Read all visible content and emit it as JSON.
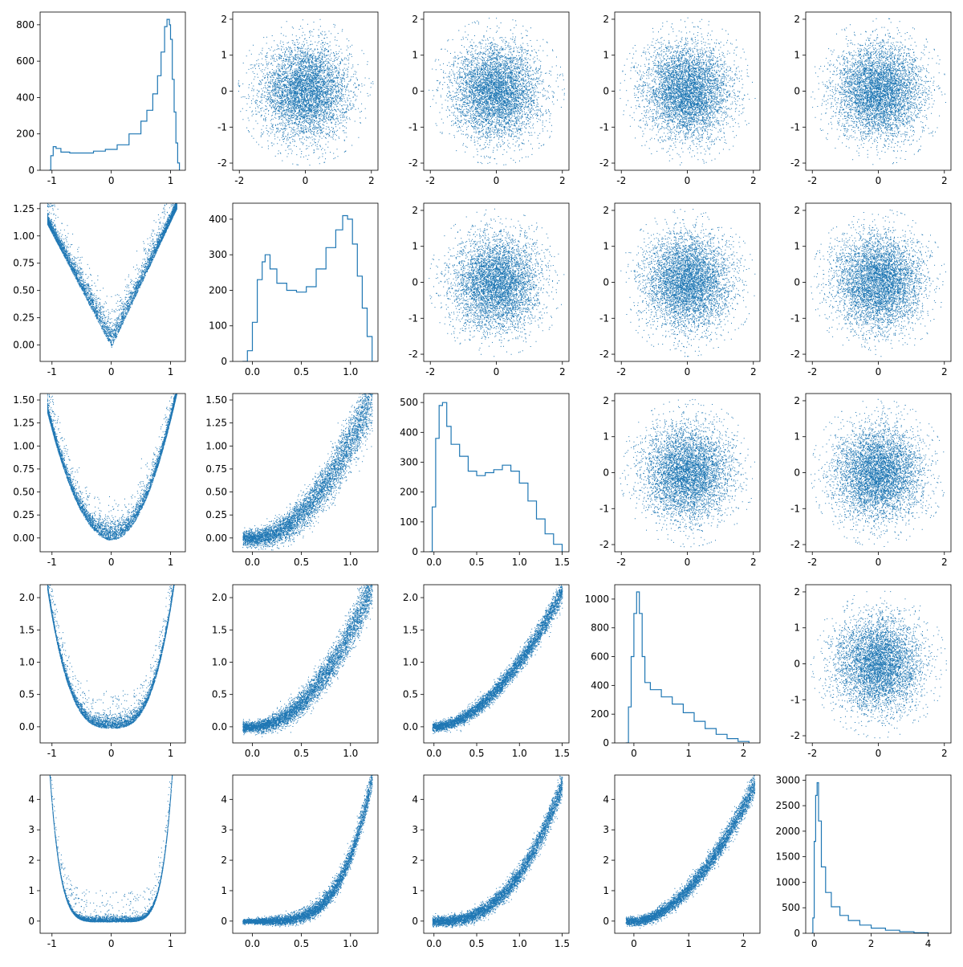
{
  "chart_data": {
    "type": "pair-grid",
    "description_of_layout": "5x5 corner plot: diagonal panels are step histograms, off-diagonal panels are scatter plots",
    "color": "#1f77b4",
    "panels": [
      {
        "row": 0,
        "col": 0,
        "type": "histogram",
        "xticks": [
          "-1",
          "0",
          "1"
        ],
        "yticks": [
          "0",
          "200",
          "400",
          "600",
          "800"
        ],
        "xlim": [
          -1.2,
          1.25
        ],
        "ylim": [
          0,
          870
        ],
        "bins": [
          [
            -1.05,
            0
          ],
          [
            -1.02,
            80
          ],
          [
            -0.98,
            130
          ],
          [
            -0.93,
            120
          ],
          [
            -0.85,
            100
          ],
          [
            -0.7,
            95
          ],
          [
            -0.5,
            95
          ],
          [
            -0.3,
            105
          ],
          [
            -0.1,
            115
          ],
          [
            0.1,
            140
          ],
          [
            0.3,
            200
          ],
          [
            0.5,
            270
          ],
          [
            0.6,
            330
          ],
          [
            0.7,
            420
          ],
          [
            0.78,
            520
          ],
          [
            0.84,
            650
          ],
          [
            0.9,
            790
          ],
          [
            0.94,
            830
          ],
          [
            0.98,
            800
          ],
          [
            1.0,
            720
          ],
          [
            1.03,
            500
          ],
          [
            1.06,
            320
          ],
          [
            1.09,
            150
          ],
          [
            1.12,
            40
          ],
          [
            1.15,
            0
          ]
        ]
      },
      {
        "row": 0,
        "col": 1,
        "type": "scatter",
        "dist": "normal",
        "xticks": [
          "-2",
          "0",
          "2"
        ],
        "yticks": [
          "-2",
          "-1",
          "0",
          "1",
          "2"
        ],
        "xlim": [
          -2.2,
          2.2
        ],
        "ylim": [
          -2.2,
          2.2
        ]
      },
      {
        "row": 0,
        "col": 2,
        "type": "scatter",
        "dist": "normal",
        "xticks": [
          "-2",
          "0",
          "2"
        ],
        "yticks": [
          "-2",
          "-1",
          "0",
          "1",
          "2"
        ],
        "xlim": [
          -2.2,
          2.2
        ],
        "ylim": [
          -2.2,
          2.2
        ]
      },
      {
        "row": 0,
        "col": 3,
        "type": "scatter",
        "dist": "normal",
        "xticks": [
          "-2",
          "0",
          "2"
        ],
        "yticks": [
          "-2",
          "-1",
          "0",
          "1",
          "2"
        ],
        "xlim": [
          -2.2,
          2.2
        ],
        "ylim": [
          -2.2,
          2.2
        ]
      },
      {
        "row": 0,
        "col": 4,
        "type": "scatter",
        "dist": "normal",
        "xticks": [
          "-2",
          "0",
          "2"
        ],
        "yticks": [
          "-2",
          "-1",
          "0",
          "1",
          "2"
        ],
        "xlim": [
          -2.2,
          2.2
        ],
        "ylim": [
          -2.2,
          2.2
        ]
      },
      {
        "row": 1,
        "col": 0,
        "type": "scatter",
        "dist": "curve",
        "power": 1,
        "xticks": [
          "-1",
          "0",
          "1"
        ],
        "yticks": [
          "0.00",
          "0.25",
          "0.50",
          "0.75",
          "1.00",
          "1.25"
        ],
        "xlim": [
          -1.2,
          1.25
        ],
        "ylim": [
          -0.15,
          1.3
        ]
      },
      {
        "row": 1,
        "col": 1,
        "type": "histogram",
        "xticks": [
          "0.0",
          "0.5",
          "1.0"
        ],
        "yticks": [
          "0",
          "100",
          "200",
          "300",
          "400"
        ],
        "xlim": [
          -0.2,
          1.28
        ],
        "ylim": [
          0,
          445
        ],
        "bins": [
          [
            -0.1,
            0
          ],
          [
            -0.05,
            30
          ],
          [
            0.0,
            110
          ],
          [
            0.05,
            230
          ],
          [
            0.1,
            280
          ],
          [
            0.13,
            300
          ],
          [
            0.18,
            260
          ],
          [
            0.25,
            220
          ],
          [
            0.35,
            200
          ],
          [
            0.45,
            195
          ],
          [
            0.55,
            210
          ],
          [
            0.65,
            260
          ],
          [
            0.75,
            320
          ],
          [
            0.85,
            370
          ],
          [
            0.92,
            410
          ],
          [
            0.97,
            400
          ],
          [
            1.02,
            330
          ],
          [
            1.07,
            240
          ],
          [
            1.12,
            150
          ],
          [
            1.17,
            70
          ],
          [
            1.22,
            0
          ]
        ]
      },
      {
        "row": 1,
        "col": 2,
        "type": "scatter",
        "dist": "normal",
        "xticks": [
          "-2",
          "0",
          "2"
        ],
        "yticks": [
          "-2",
          "-1",
          "0",
          "1",
          "2"
        ],
        "xlim": [
          -2.2,
          2.2
        ],
        "ylim": [
          -2.2,
          2.2
        ]
      },
      {
        "row": 1,
        "col": 3,
        "type": "scatter",
        "dist": "normal",
        "xticks": [
          "-2",
          "0",
          "2"
        ],
        "yticks": [
          "-2",
          "-1",
          "0",
          "1",
          "2"
        ],
        "xlim": [
          -2.2,
          2.2
        ],
        "ylim": [
          -2.2,
          2.2
        ]
      },
      {
        "row": 1,
        "col": 4,
        "type": "scatter",
        "dist": "normal",
        "xticks": [
          "-2",
          "0",
          "2"
        ],
        "yticks": [
          "-2",
          "-1",
          "0",
          "1",
          "2"
        ],
        "xlim": [
          -2.2,
          2.2
        ],
        "ylim": [
          -2.2,
          2.2
        ]
      },
      {
        "row": 2,
        "col": 0,
        "type": "scatter",
        "dist": "curve",
        "power": 2,
        "xticks": [
          "-1",
          "0",
          "1"
        ],
        "yticks": [
          "0.00",
          "0.25",
          "0.50",
          "0.75",
          "1.00",
          "1.25",
          "1.50"
        ],
        "xlim": [
          -1.2,
          1.25
        ],
        "ylim": [
          -0.15,
          1.57
        ]
      },
      {
        "row": 2,
        "col": 1,
        "type": "scatter",
        "dist": "rise",
        "ymax": 1.5,
        "xticks": [
          "0.0",
          "0.5",
          "1.0"
        ],
        "yticks": [
          "0.00",
          "0.25",
          "0.50",
          "0.75",
          "1.00",
          "1.25",
          "1.50"
        ],
        "xlim": [
          -0.2,
          1.28
        ],
        "ylim": [
          -0.15,
          1.57
        ]
      },
      {
        "row": 2,
        "col": 2,
        "type": "histogram",
        "xticks": [
          "0.0",
          "0.5",
          "1.0",
          "1.5"
        ],
        "yticks": [
          "0",
          "100",
          "200",
          "300",
          "400",
          "500"
        ],
        "xlim": [
          -0.12,
          1.58
        ],
        "ylim": [
          0,
          530
        ],
        "bins": [
          [
            -0.05,
            0
          ],
          [
            -0.02,
            150
          ],
          [
            0.02,
            380
          ],
          [
            0.06,
            490
          ],
          [
            0.1,
            500
          ],
          [
            0.15,
            420
          ],
          [
            0.2,
            360
          ],
          [
            0.3,
            320
          ],
          [
            0.4,
            270
          ],
          [
            0.5,
            255
          ],
          [
            0.6,
            265
          ],
          [
            0.7,
            275
          ],
          [
            0.8,
            290
          ],
          [
            0.9,
            270
          ],
          [
            1.0,
            230
          ],
          [
            1.1,
            170
          ],
          [
            1.2,
            110
          ],
          [
            1.3,
            60
          ],
          [
            1.4,
            25
          ],
          [
            1.5,
            0
          ]
        ]
      },
      {
        "row": 2,
        "col": 3,
        "type": "scatter",
        "dist": "normal",
        "xticks": [
          "-2",
          "0",
          "2"
        ],
        "yticks": [
          "-2",
          "-1",
          "0",
          "1",
          "2"
        ],
        "xlim": [
          -2.2,
          2.2
        ],
        "ylim": [
          -2.2,
          2.2
        ]
      },
      {
        "row": 2,
        "col": 4,
        "type": "scatter",
        "dist": "normal",
        "xticks": [
          "-2",
          "0",
          "2"
        ],
        "yticks": [
          "-2",
          "-1",
          "0",
          "1",
          "2"
        ],
        "xlim": [
          -2.2,
          2.2
        ],
        "ylim": [
          -2.2,
          2.2
        ]
      },
      {
        "row": 3,
        "col": 0,
        "type": "scatter",
        "dist": "curve",
        "power": 3,
        "xticks": [
          "-1",
          "0",
          "1"
        ],
        "yticks": [
          "0.0",
          "0.5",
          "1.0",
          "1.5",
          "2.0"
        ],
        "xlim": [
          -1.2,
          1.25
        ],
        "ylim": [
          -0.25,
          2.2
        ]
      },
      {
        "row": 3,
        "col": 1,
        "type": "scatter",
        "dist": "rise",
        "ymax": 2.1,
        "xticks": [
          "0.0",
          "0.5",
          "1.0"
        ],
        "yticks": [
          "0.0",
          "0.5",
          "1.0",
          "1.5",
          "2.0"
        ],
        "xlim": [
          -0.2,
          1.28
        ],
        "ylim": [
          -0.25,
          2.2
        ]
      },
      {
        "row": 3,
        "col": 2,
        "type": "scatter",
        "dist": "band",
        "xmax": 1.5,
        "ymax": 2.1,
        "xticks": [
          "0.0",
          "0.5",
          "1.0",
          "1.5"
        ],
        "yticks": [
          "0.0",
          "0.5",
          "1.0",
          "1.5",
          "2.0"
        ],
        "xlim": [
          -0.12,
          1.58
        ],
        "ylim": [
          -0.25,
          2.2
        ]
      },
      {
        "row": 3,
        "col": 3,
        "type": "histogram",
        "xticks": [
          "0",
          "1",
          "2"
        ],
        "yticks": [
          "0",
          "200",
          "400",
          "600",
          "800",
          "1000"
        ],
        "xlim": [
          -0.35,
          2.3
        ],
        "ylim": [
          0,
          1100
        ],
        "bins": [
          [
            -0.15,
            0
          ],
          [
            -0.1,
            250
          ],
          [
            -0.05,
            600
          ],
          [
            0.0,
            900
          ],
          [
            0.05,
            1050
          ],
          [
            0.1,
            900
          ],
          [
            0.15,
            600
          ],
          [
            0.2,
            420
          ],
          [
            0.3,
            370
          ],
          [
            0.5,
            320
          ],
          [
            0.7,
            270
          ],
          [
            0.9,
            210
          ],
          [
            1.1,
            150
          ],
          [
            1.3,
            100
          ],
          [
            1.5,
            60
          ],
          [
            1.7,
            30
          ],
          [
            1.9,
            10
          ],
          [
            2.1,
            0
          ]
        ]
      },
      {
        "row": 3,
        "col": 4,
        "type": "scatter",
        "dist": "normal",
        "xticks": [
          "-2",
          "0",
          "2"
        ],
        "yticks": [
          "-2",
          "-1",
          "0",
          "1",
          "2"
        ],
        "xlim": [
          -2.2,
          2.2
        ],
        "ylim": [
          -2.2,
          2.2
        ]
      },
      {
        "row": 4,
        "col": 0,
        "type": "scatter",
        "dist": "curve",
        "power": 6,
        "xticks": [
          "-1",
          "0",
          "1"
        ],
        "yticks": [
          "0",
          "1",
          "2",
          "3",
          "4"
        ],
        "xlim": [
          -1.2,
          1.25
        ],
        "ylim": [
          -0.4,
          4.8
        ]
      },
      {
        "row": 4,
        "col": 1,
        "type": "scatter",
        "dist": "rise",
        "ymax": 4.4,
        "steep": true,
        "xticks": [
          "0.0",
          "0.5",
          "1.0"
        ],
        "yticks": [
          "0",
          "1",
          "2",
          "3",
          "4"
        ],
        "xlim": [
          -0.2,
          1.28
        ],
        "ylim": [
          -0.4,
          4.8
        ]
      },
      {
        "row": 4,
        "col": 2,
        "type": "scatter",
        "dist": "band",
        "xmax": 1.5,
        "ymax": 4.5,
        "steep": true,
        "xticks": [
          "0.0",
          "0.5",
          "1.0",
          "1.5"
        ],
        "yticks": [
          "0",
          "1",
          "2",
          "3",
          "4"
        ],
        "xlim": [
          -0.12,
          1.58
        ],
        "ylim": [
          -0.4,
          4.8
        ]
      },
      {
        "row": 4,
        "col": 3,
        "type": "scatter",
        "dist": "band",
        "xmax": 2.2,
        "ymax": 4.5,
        "xmin": -0.15,
        "xticks": [
          "0",
          "1",
          "2"
        ],
        "yticks": [
          "0",
          "1",
          "2",
          "3",
          "4"
        ],
        "xlim": [
          -0.35,
          2.3
        ],
        "ylim": [
          -0.4,
          4.8
        ]
      },
      {
        "row": 4,
        "col": 4,
        "type": "histogram",
        "xticks": [
          "0",
          "2",
          "4"
        ],
        "yticks": [
          "0",
          "500",
          "1000",
          "1500",
          "2000",
          "2500",
          "3000"
        ],
        "xlim": [
          -0.3,
          4.8
        ],
        "ylim": [
          0,
          3100
        ],
        "bins": [
          [
            -0.1,
            0
          ],
          [
            -0.05,
            300
          ],
          [
            0.0,
            1800
          ],
          [
            0.05,
            2700
          ],
          [
            0.1,
            2950
          ],
          [
            0.15,
            2200
          ],
          [
            0.25,
            1300
          ],
          [
            0.4,
            800
          ],
          [
            0.6,
            520
          ],
          [
            0.9,
            350
          ],
          [
            1.2,
            250
          ],
          [
            1.6,
            160
          ],
          [
            2.0,
            100
          ],
          [
            2.5,
            60
          ],
          [
            3.0,
            30
          ],
          [
            3.5,
            10
          ],
          [
            4.0,
            0
          ]
        ]
      }
    ]
  }
}
